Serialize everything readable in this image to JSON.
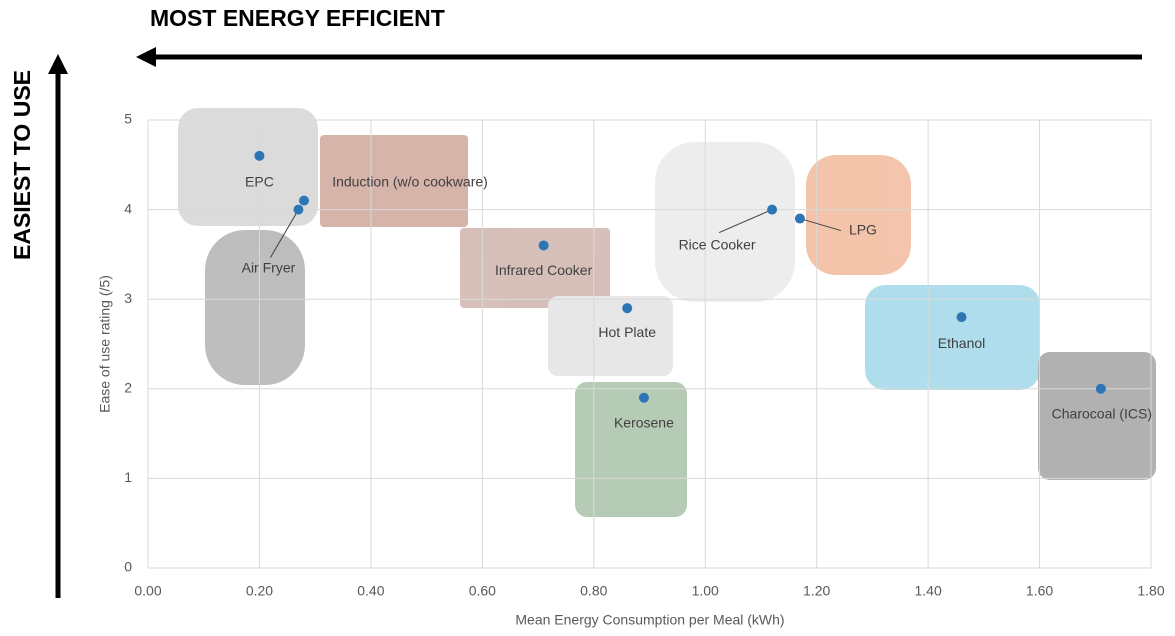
{
  "chart_data": {
    "type": "scatter",
    "top_annotation": "MOST ENERGY EFFICIENT",
    "side_annotation": "EASIEST TO USE",
    "x_label": "Mean Energy Consumption per Meal (kWh)",
    "y_label": "Ease of use rating (/5)",
    "point_labels": [
      "EPC",
      "Induction (w/o cookware)",
      "Air Fryer",
      "Infrared Cooker",
      "Hot Plate",
      "Kerosene",
      "Rice Cooker",
      "LPG",
      "Ethanol",
      "Charocoal (ICS)"
    ],
    "x": [
      0.2,
      0.28,
      0.27,
      0.71,
      0.86,
      0.89,
      1.12,
      1.17,
      1.46,
      1.71
    ],
    "values": [
      4.6,
      4.1,
      4.0,
      3.6,
      2.9,
      1.9,
      4.0,
      3.9,
      2.8,
      2.0
    ],
    "color": "#2e75b6",
    "xlim": [
      0,
      1.8
    ],
    "xticks": [
      {
        "value": 0,
        "label": "0.00"
      },
      {
        "value": 0.2,
        "label": "0.20"
      },
      {
        "value": 0.4,
        "label": "0.40"
      },
      {
        "value": 0.6,
        "label": "0.60"
      },
      {
        "value": 0.8,
        "label": "0.80"
      },
      {
        "value": 1,
        "label": "1.00"
      },
      {
        "value": 1.2,
        "label": "1.20"
      },
      {
        "value": 1.4,
        "label": "1.40"
      },
      {
        "value": 1.6,
        "label": "1.60"
      },
      {
        "value": 1.8,
        "label": "1.80"
      }
    ],
    "ylim": [
      0,
      5
    ],
    "yticks": [
      0,
      1,
      2,
      3,
      4,
      5
    ],
    "grid": true
  }
}
